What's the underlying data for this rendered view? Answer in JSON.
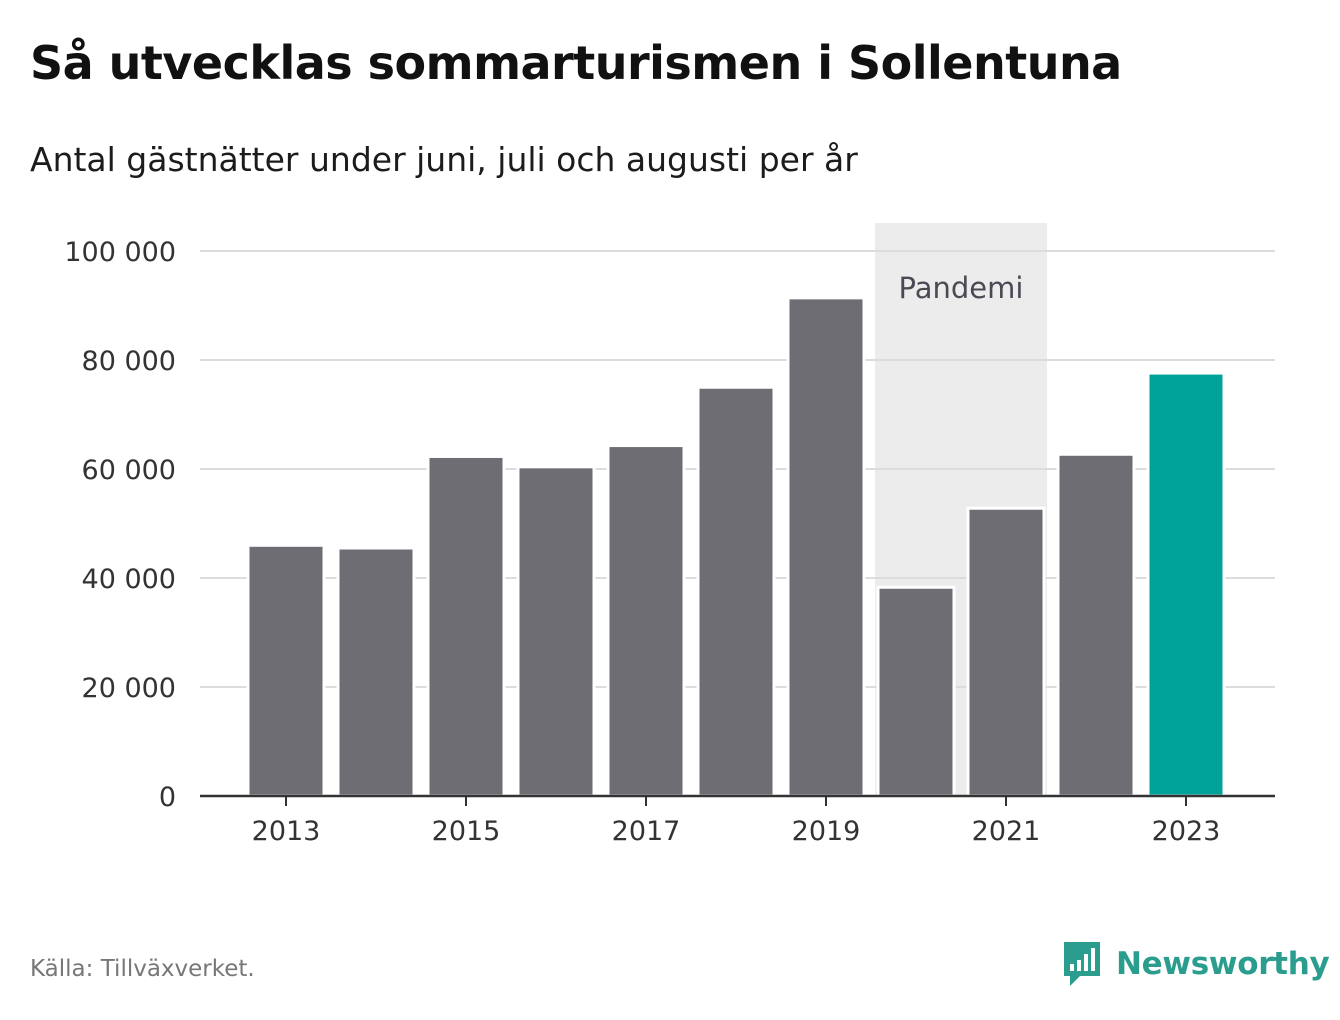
{
  "title": "Så utvecklas sommarturismen i Sollentuna",
  "subtitle": "Antal gästnätter under juni, juli och augusti per år",
  "source": "Källa: Tillväxverket.",
  "brand": "Newsworthy",
  "colors": {
    "bar": "#6e6d73",
    "highlight": "#00a39a",
    "pandemic_band": "#ececec",
    "brand": "#2a9d8f"
  },
  "chart_data": {
    "type": "bar",
    "categories": [
      "2013",
      "2014",
      "2015",
      "2016",
      "2017",
      "2018",
      "2019",
      "2020",
      "2021",
      "2022",
      "2023"
    ],
    "values": [
      46000,
      45500,
      62300,
      60400,
      64300,
      75000,
      91400,
      38300,
      52800,
      62700,
      77600
    ],
    "highlight_category": "2023",
    "x_tick_labels": [
      "2013",
      "2015",
      "2017",
      "2019",
      "2021",
      "2023"
    ],
    "y_ticks": [
      0,
      20000,
      40000,
      60000,
      80000,
      100000
    ],
    "y_tick_labels": [
      "0",
      "20 000",
      "40 000",
      "60 000",
      "80 000",
      "100 000"
    ],
    "ylim": [
      0,
      100000
    ],
    "grid": true,
    "annotations": [
      {
        "label": "Pandemi",
        "from": "2020",
        "to": "2021"
      }
    ]
  }
}
